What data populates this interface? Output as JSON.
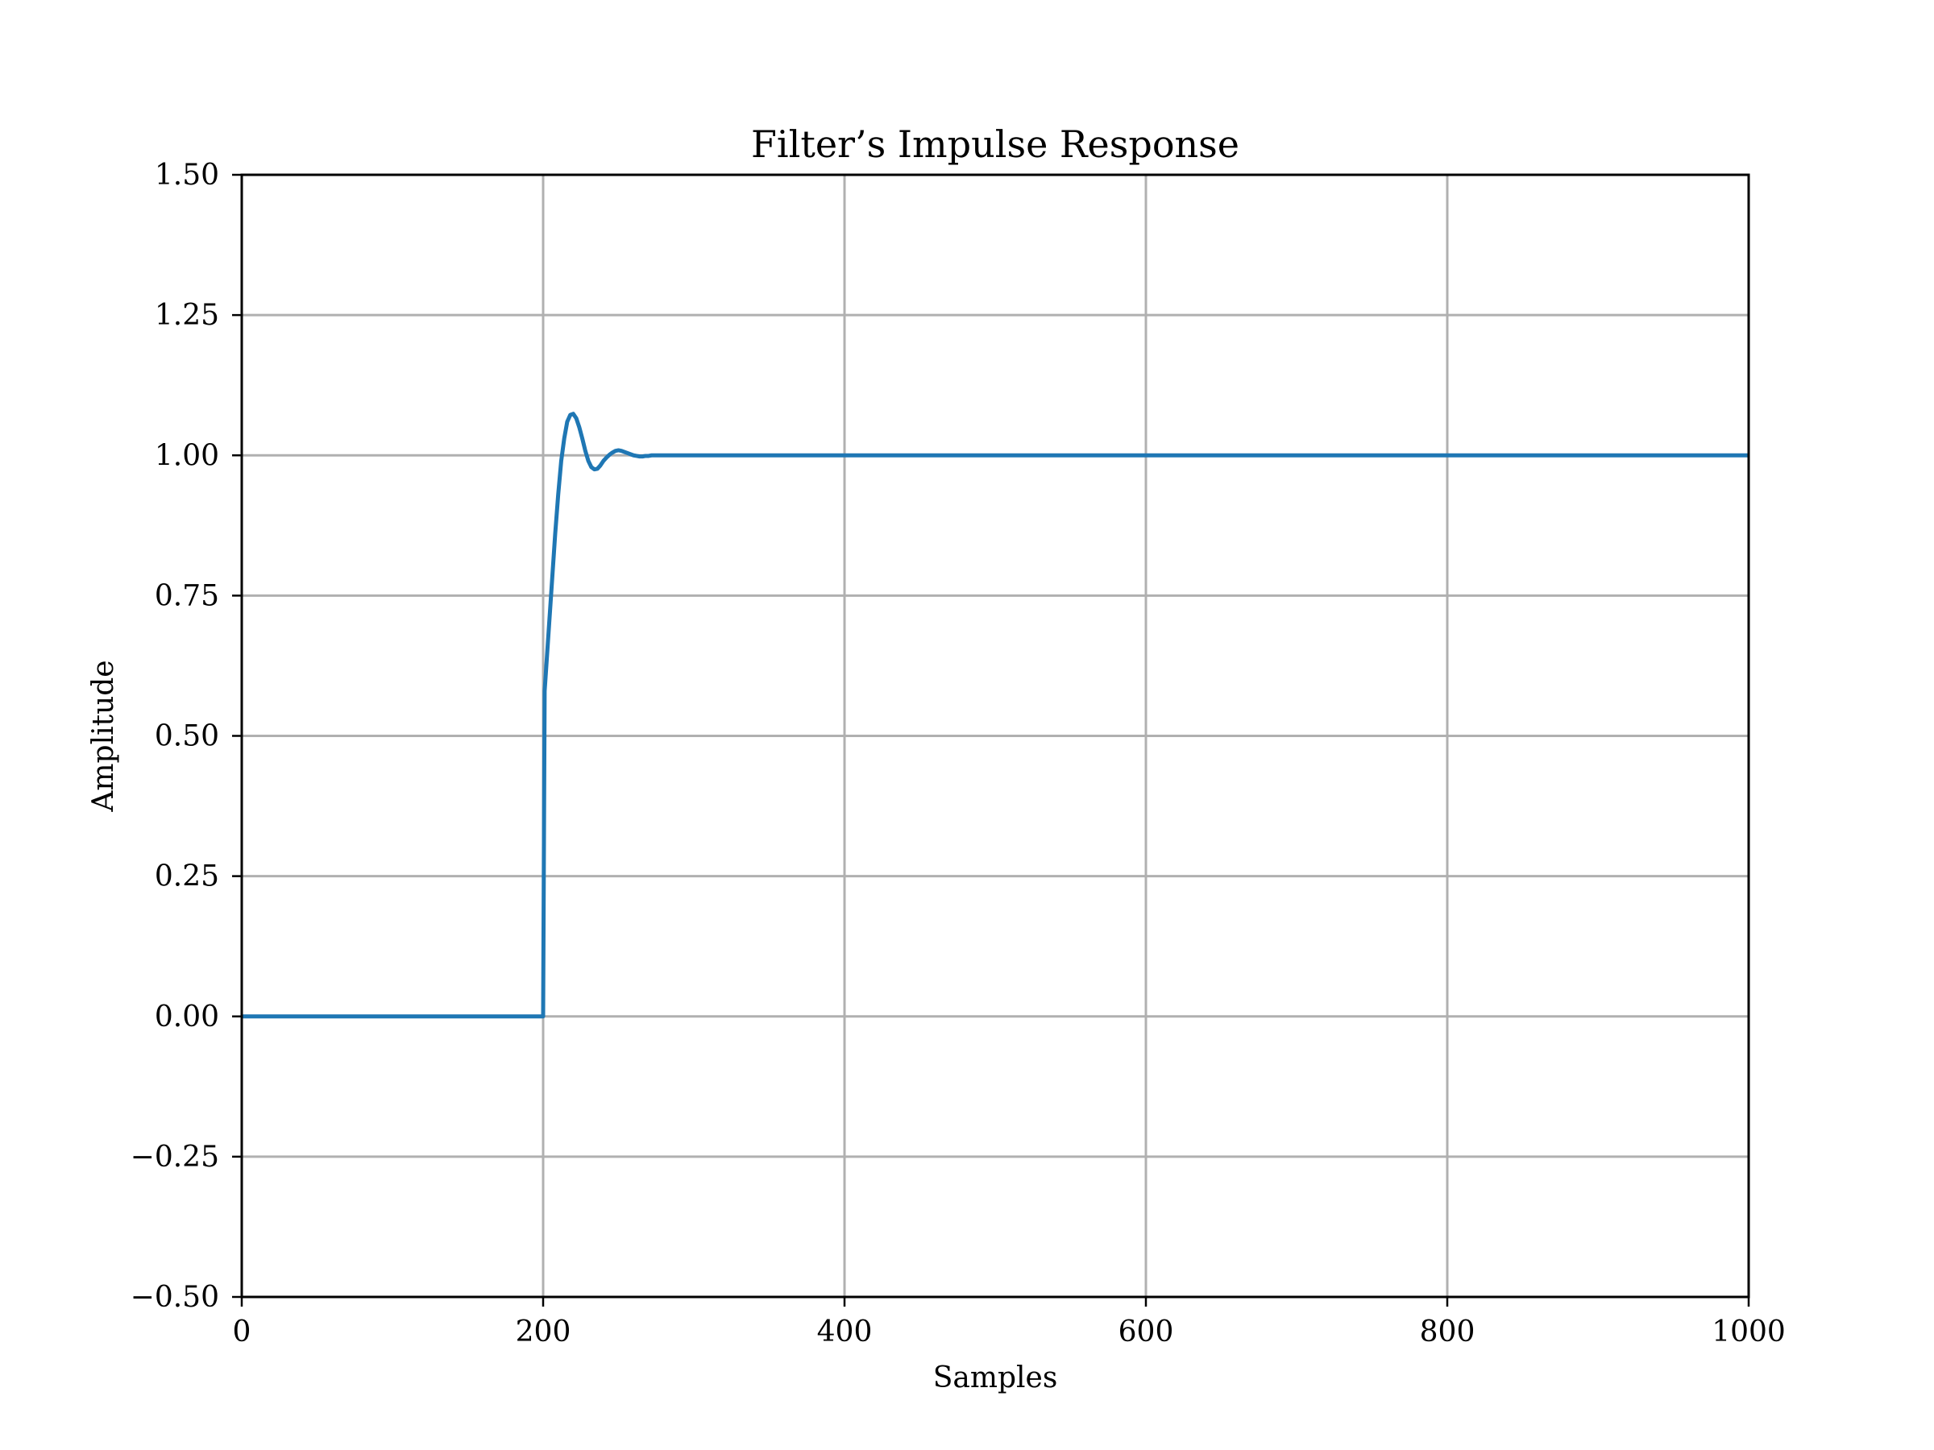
{
  "chart_data": {
    "type": "line",
    "title": "Filter’s Impulse Response",
    "xlabel": "Samples",
    "ylabel": "Amplitude",
    "xlim": [
      0,
      1000
    ],
    "ylim": [
      -0.5,
      1.5
    ],
    "xticks": [
      0,
      200,
      400,
      600,
      800,
      1000
    ],
    "xtick_labels": [
      "0",
      "200",
      "400",
      "600",
      "800",
      "1000"
    ],
    "yticks": [
      -0.5,
      -0.25,
      0,
      0.25,
      0.5,
      0.75,
      1.0,
      1.25,
      1.5
    ],
    "ytick_labels": [
      "−0.50",
      "−0.25",
      "0.00",
      "0.25",
      "0.50",
      "0.75",
      "1.00",
      "1.25",
      "1.50"
    ],
    "grid": true,
    "series": [
      {
        "color": "#1f77b4",
        "x": [
          0,
          199,
          200,
          201,
          202,
          204,
          206,
          208,
          210,
          212,
          214,
          216,
          218,
          220,
          222,
          224,
          226,
          228,
          230,
          232,
          234,
          236,
          238,
          240,
          242,
          244,
          246,
          248,
          250,
          252,
          254,
          256,
          258,
          260,
          262,
          264,
          266,
          268,
          270,
          272,
          274,
          276,
          278,
          280,
          285,
          290,
          295,
          300,
          1000
        ],
        "y": [
          0,
          0,
          0,
          0.58,
          0.62,
          0.7,
          0.78,
          0.86,
          0.93,
          0.99,
          1.03,
          1.06,
          1.072,
          1.074,
          1.066,
          1.05,
          1.03,
          1.008,
          0.99,
          0.979,
          0.975,
          0.976,
          0.982,
          0.99,
          0.996,
          1.001,
          1.005,
          1.008,
          1.009,
          1.008,
          1.006,
          1.004,
          1.002,
          1.0,
          0.999,
          0.998,
          0.998,
          0.999,
          0.999,
          1.0,
          1.0,
          1.0,
          1.0,
          1.0,
          1.0,
          1.0,
          1.0,
          1.0,
          1.0
        ]
      }
    ]
  }
}
